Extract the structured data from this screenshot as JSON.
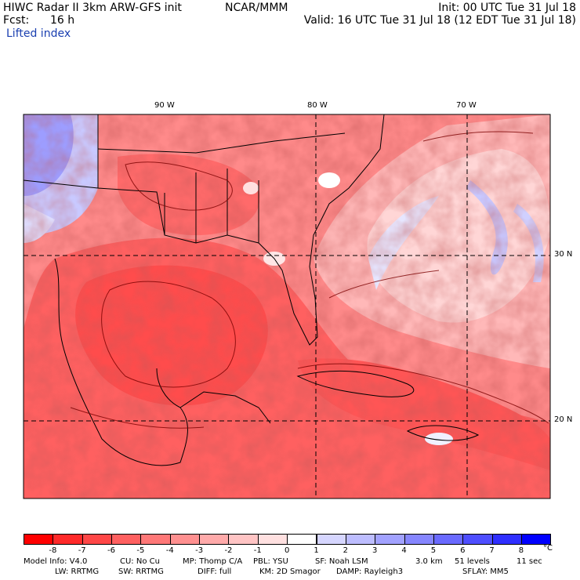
{
  "header": {
    "title": "HIWC Radar II 3km ARW-GFS init",
    "org": "NCAR/MMM",
    "init": "Init: 00 UTC Tue 31 Jul 18",
    "fcst_label": "Fcst:",
    "fcst_value": "16 h",
    "valid": "Valid: 16 UTC Tue 31 Jul 18 (12 EDT Tue 31 Jul 18)",
    "field": "Lifted index"
  },
  "map": {
    "lon_labels": [
      "90 W",
      "80 W",
      "70 W"
    ],
    "lat_labels": [
      "30 N",
      "20 N"
    ]
  },
  "colorbar": {
    "ticks": [
      "-8",
      "-7",
      "-6",
      "-5",
      "-4",
      "-3",
      "-2",
      "-1",
      "0",
      "1",
      "2",
      "3",
      "4",
      "5",
      "6",
      "7",
      "8"
    ],
    "unit": "°C",
    "colors": [
      "#ff0000",
      "#ff2a2a",
      "#ff4747",
      "#ff6060",
      "#ff7878",
      "#ff9090",
      "#ffaaaa",
      "#ffc4c4",
      "#ffe0e0",
      "#ffffff",
      "#d6d6ff",
      "#bdbdff",
      "#a2a2ff",
      "#8686ff",
      "#6a6aff",
      "#4e4eff",
      "#2f2fff",
      "#0000ff"
    ]
  },
  "model_info": {
    "line1": [
      "Model Info: V4.0",
      "CU: No Cu",
      "MP: Thomp C/A",
      "PBL: YSU",
      "SF: Noah LSM",
      "3.0 km",
      "51 levels",
      "11 sec"
    ],
    "line2": [
      "LW: RRTMG",
      "SW: RRTMG",
      "DIFF: full",
      "KM: 2D Smagor",
      "DAMP: Rayleigh3",
      "SFLAY: MM5"
    ]
  }
}
